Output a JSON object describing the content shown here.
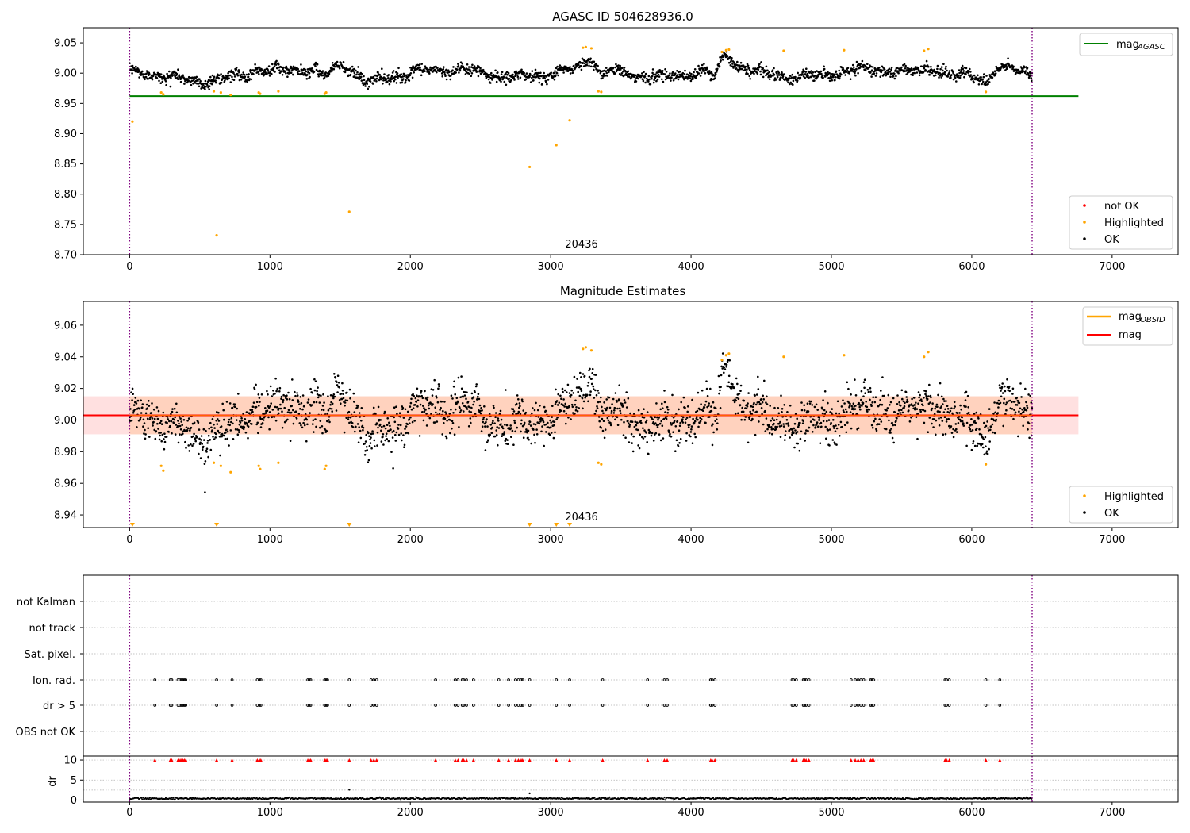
{
  "colors": {
    "ok": "#000000",
    "highlighted": "#ffa500",
    "not_ok": "#ff0000",
    "mag_agasc_line": "#008000",
    "mag_line": "#ff0000",
    "mag_obsid_line": "#ffa500",
    "band_fill": "#ffdada",
    "marker_vline": "#800080",
    "grid": "#b0b0b0"
  },
  "panel1": {
    "title": "AGASC ID 504628936.0",
    "obsid_label": "20436",
    "legend_lines": [
      {
        "label": "mag",
        "sub": "AGASC"
      }
    ],
    "legend_points": [
      "not OK",
      "Highlighted",
      "OK"
    ]
  },
  "panel2": {
    "title": "Magnitude Estimates",
    "obsid_label": "20436",
    "legend_lines": [
      {
        "label": "mag",
        "sub": "OBSID"
      },
      {
        "label": "mag",
        "sub": ""
      }
    ],
    "legend_points": [
      "Highlighted",
      "OK"
    ]
  },
  "panel3": {
    "flag_rows": [
      "not Kalman",
      "not track",
      "Sat. pixel.",
      "Ion. rad.",
      "dr > 5",
      "OBS not OK"
    ]
  },
  "panel4": {
    "ylabel": "dr"
  },
  "chart_data": [
    {
      "type": "scatter",
      "title": "AGASC ID 504628936.0",
      "xlabel": "",
      "ylabel": "",
      "xlim": [
        -330,
        7470
      ],
      "ylim": [
        8.7,
        9.075
      ],
      "x_ticks": [
        0,
        1000,
        2000,
        3000,
        4000,
        5000,
        6000,
        7000
      ],
      "y_ticks": [
        8.7,
        8.75,
        8.8,
        8.85,
        8.9,
        8.95,
        9.0,
        9.05
      ],
      "y_tick_labels": [
        "8.70",
        "8.75",
        "8.80",
        "8.85",
        "8.90",
        "8.95",
        "9.00",
        "9.05"
      ],
      "x_range_ok": [
        0,
        6430
      ],
      "baseline": 9.0,
      "mag_agasc": 8.962,
      "mag_agasc_extent": [
        0,
        6760
      ],
      "obsid_markers": [
        0,
        6430
      ],
      "obsid_label": {
        "x": 3220,
        "text": "20436"
      },
      "legend": [
        "mag_AGASC",
        "not OK",
        "Highlighted",
        "OK"
      ],
      "features": [
        {
          "x": 400,
          "w": 250,
          "a": -0.015
        },
        {
          "x": 900,
          "w": 100,
          "a": 0.01
        },
        {
          "x": 1400,
          "w": 60,
          "a": -0.012
        },
        {
          "x": 1520,
          "w": 110,
          "a": 0.015
        },
        {
          "x": 1700,
          "w": 80,
          "a": -0.012
        },
        {
          "x": 3300,
          "w": 90,
          "a": 0.02
        },
        {
          "x": 3360,
          "w": 40,
          "a": -0.02
        },
        {
          "x": 4170,
          "w": 40,
          "a": -0.02
        },
        {
          "x": 4250,
          "w": 90,
          "a": 0.022
        },
        {
          "x": 5700,
          "w": 100,
          "a": 0.015
        },
        {
          "x": 6100,
          "w": 50,
          "a": -0.015
        }
      ],
      "highlight_outliers": [
        {
          "x": 20,
          "y": 8.92
        },
        {
          "x": 620,
          "y": 8.732
        },
        {
          "x": 1565,
          "y": 8.771
        },
        {
          "x": 2850,
          "y": 8.845
        },
        {
          "x": 3040,
          "y": 8.881
        },
        {
          "x": 3135,
          "y": 8.922
        }
      ],
      "highlight_clusters": [
        {
          "x": 225,
          "y": 8.968
        },
        {
          "x": 240,
          "y": 8.965
        },
        {
          "x": 600,
          "y": 8.97
        },
        {
          "x": 650,
          "y": 8.968
        },
        {
          "x": 720,
          "y": 8.964
        },
        {
          "x": 920,
          "y": 8.968
        },
        {
          "x": 930,
          "y": 8.966
        },
        {
          "x": 1060,
          "y": 8.97
        },
        {
          "x": 1390,
          "y": 8.966
        },
        {
          "x": 1400,
          "y": 8.968
        },
        {
          "x": 3230,
          "y": 9.042
        },
        {
          "x": 3250,
          "y": 9.043
        },
        {
          "x": 3290,
          "y": 9.041
        },
        {
          "x": 3340,
          "y": 8.97
        },
        {
          "x": 3360,
          "y": 8.969
        },
        {
          "x": 4220,
          "y": 9.035
        },
        {
          "x": 4250,
          "y": 9.038
        },
        {
          "x": 4270,
          "y": 9.039
        },
        {
          "x": 4660,
          "y": 9.037
        },
        {
          "x": 5090,
          "y": 9.038
        },
        {
          "x": 5660,
          "y": 9.037
        },
        {
          "x": 5690,
          "y": 9.04
        },
        {
          "x": 6100,
          "y": 8.969
        }
      ]
    },
    {
      "type": "scatter",
      "title": "Magnitude Estimates",
      "xlabel": "",
      "ylabel": "",
      "xlim": [
        -330,
        7470
      ],
      "ylim": [
        8.932,
        9.075
      ],
      "x_ticks": [
        0,
        1000,
        2000,
        3000,
        4000,
        5000,
        6000,
        7000
      ],
      "y_ticks": [
        8.94,
        8.96,
        8.98,
        9.0,
        9.02,
        9.04,
        9.06
      ],
      "y_tick_labels": [
        "8.94",
        "8.96",
        "8.98",
        "9.00",
        "9.02",
        "9.04",
        "9.06"
      ],
      "mag": 9.003,
      "mag_band": [
        8.991,
        9.015
      ],
      "mag_band_extent": [
        -330,
        6760
      ],
      "obsid_markers": [
        0,
        6430
      ],
      "obsid_label": {
        "x": 3220,
        "text": "20436"
      },
      "clipped_markers_x": [
        20,
        620,
        1565,
        2850,
        3040,
        3135
      ],
      "legend": [
        "mag_OBSID",
        "mag",
        "Highlighted",
        "OK"
      ]
    },
    {
      "type": "scatter",
      "title": "",
      "categories": [
        "not Kalman",
        "not track",
        "Sat. pixel.",
        "Ion. rad.",
        "dr > 5",
        "OBS not OK"
      ],
      "xlim": [
        -330,
        7470
      ],
      "flagged_x": [
        180,
        290,
        300,
        345,
        360,
        370,
        380,
        390,
        400,
        620,
        730,
        910,
        925,
        935,
        1270,
        1280,
        1290,
        1390,
        1400,
        1410,
        1565,
        1720,
        1740,
        1760,
        2180,
        2320,
        2340,
        2370,
        2380,
        2400,
        2450,
        2630,
        2700,
        2750,
        2770,
        2790,
        2800,
        2850,
        3040,
        3135,
        3370,
        3690,
        3810,
        3830,
        4140,
        4150,
        4170,
        4720,
        4730,
        4750,
        4800,
        4810,
        4820,
        4840,
        5140,
        5170,
        5190,
        5210,
        5230,
        5280,
        5290,
        5300,
        5810,
        5820,
        5840,
        6100,
        6200
      ],
      "flagged_rows": [
        "Ion. rad.",
        "dr > 5"
      ]
    },
    {
      "type": "scatter",
      "title": "",
      "xlabel": "",
      "ylabel": "dr",
      "xlim": [
        -330,
        7470
      ],
      "ylim": [
        -0.5,
        11
      ],
      "x_ticks": [
        0,
        1000,
        2000,
        3000,
        4000,
        5000,
        6000,
        7000
      ],
      "y_ticks": [
        0,
        5,
        10
      ],
      "clip_value": 10,
      "typical_dr": 0.4,
      "outliers": [
        {
          "x": 1565,
          "y": 2.6
        },
        {
          "x": 2850,
          "y": 1.7
        }
      ]
    }
  ]
}
